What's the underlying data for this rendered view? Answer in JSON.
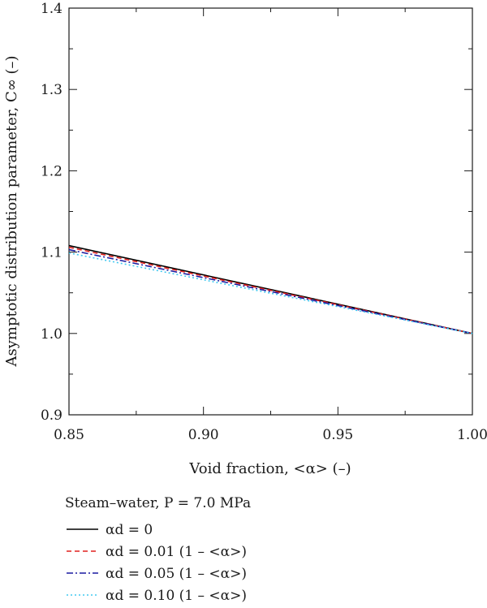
{
  "chart_data": {
    "type": "line",
    "xlabel": "Void fraction, <α> (–)",
    "ylabel": "Asymptotic distribution parameter, C∞ (–)",
    "xlim": [
      0.85,
      1.0
    ],
    "ylim": [
      0.9,
      1.4
    ],
    "xticks": [
      "0.85",
      "0.90",
      "0.95",
      "1.00"
    ],
    "yticks": [
      "0.9",
      "1.0",
      "1.1",
      "1.2",
      "1.3",
      "1.4"
    ],
    "grid": false,
    "legend": {
      "placement": "below",
      "title": "Steam–water, P = 7.0 MPa",
      "entries": [
        "αd = 0",
        "αd = 0.01 (1 – <α>)",
        "αd = 0.05 (1 – <α>)",
        "αd = 0.10 (1 – <α>)"
      ]
    },
    "series": [
      {
        "name": "αd = 0",
        "color": "#000000",
        "dash": "solid",
        "x": [
          0.85,
          1.0
        ],
        "y": [
          1.108,
          1.0
        ]
      },
      {
        "name": "αd = 0.01 (1 – <α>)",
        "color": "#e0201e",
        "dash": "dashed",
        "x": [
          0.85,
          1.0
        ],
        "y": [
          1.106,
          1.0
        ]
      },
      {
        "name": "αd = 0.05 (1 – <α>)",
        "color": "#1a1aa0",
        "dash": "dashdot",
        "x": [
          0.85,
          1.0
        ],
        "y": [
          1.103,
          1.0
        ]
      },
      {
        "name": "αd = 0.10 (1 – <α>)",
        "color": "#40c8f0",
        "dash": "dotted",
        "x": [
          0.85,
          1.0
        ],
        "y": [
          1.099,
          1.0
        ]
      }
    ]
  }
}
